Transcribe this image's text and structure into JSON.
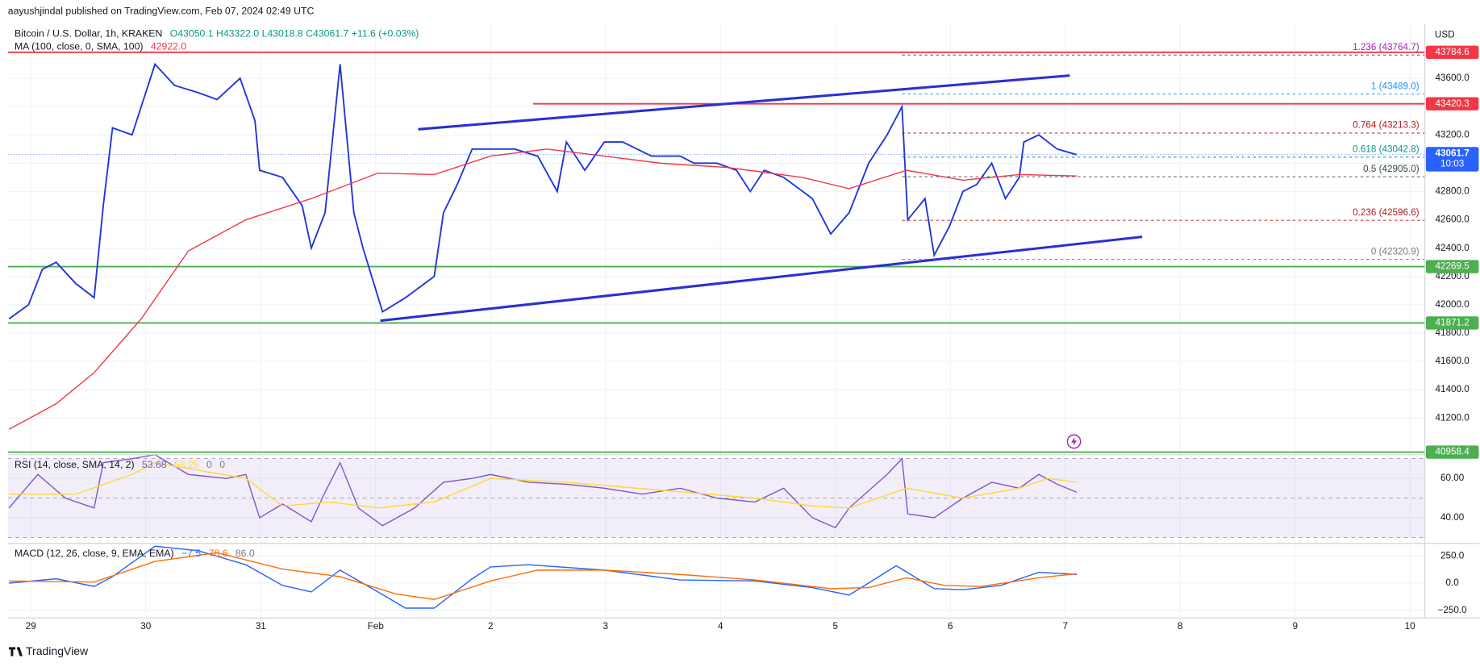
{
  "header": {
    "publisher": "aayushjindal published on TradingView.com, Feb 07, 2024 02:49 UTC",
    "ohlc": "O43050.1 H43322.0 L43018.8 C43061.7 +11.6 (+0.03%)",
    "currency": "USD",
    "footer": "TradingView"
  },
  "chart_data": [
    {
      "type": "line",
      "xlim": [
        -0.2,
        12.13
      ],
      "xticks": [
        {
          "value": 0,
          "label": "29"
        },
        {
          "value": 1,
          "label": "30"
        },
        {
          "value": 2,
          "label": "31"
        },
        {
          "value": 3,
          "label": "Feb"
        },
        {
          "value": 4,
          "label": "2"
        },
        {
          "value": 5,
          "label": "3"
        },
        {
          "value": 6,
          "label": "4"
        },
        {
          "value": 7,
          "label": "5"
        },
        {
          "value": 8,
          "label": "6"
        },
        {
          "value": 9,
          "label": "7"
        },
        {
          "value": 10,
          "label": "8"
        },
        {
          "value": 11,
          "label": "9"
        },
        {
          "value": 12,
          "label": "10"
        }
      ],
      "ylim": [
        40940,
        43987
      ],
      "yticks": [
        {
          "value": 41200,
          "label": "41200.0"
        },
        {
          "value": 41400,
          "label": "41400.0"
        },
        {
          "value": 41600,
          "label": "41600.0"
        },
        {
          "value": 41800,
          "label": "41800.0"
        },
        {
          "value": 42000,
          "label": "42000.0"
        },
        {
          "value": 42200,
          "label": "42200.0"
        },
        {
          "value": 42400,
          "label": "42400.0"
        },
        {
          "value": 42600,
          "label": "42600.0"
        },
        {
          "value": 42800,
          "label": "42800.0"
        },
        {
          "value": 43000,
          "label": "43000.0"
        },
        {
          "value": 43200,
          "label": "43200.0"
        },
        {
          "value": 43400,
          "label": "43400.0"
        },
        {
          "value": 43600,
          "label": "43600.0"
        }
      ],
      "grid": true,
      "series": [
        {
          "name": "Bitcoin / U.S. Dollar, 1h, KRAKEN",
          "color": "#1f35d9",
          "x": [
            -0.19,
            -0.02,
            0.1,
            0.22,
            0.39,
            0.55,
            0.63,
            0.71,
            0.88,
            1.08,
            1.25,
            1.45,
            1.62,
            1.82,
            1.95,
            1.99,
            2.19,
            2.36,
            2.44,
            2.56,
            2.69,
            2.81,
            2.89,
            3.06,
            3.26,
            3.51,
            3.59,
            3.71,
            3.84,
            4.0,
            4.21,
            4.41,
            4.58,
            4.66,
            4.82,
            4.99,
            5.15,
            5.4,
            5.65,
            5.77,
            5.97,
            6.14,
            6.26,
            6.38,
            6.55,
            6.8,
            6.96,
            7.12,
            7.29,
            7.45,
            7.58,
            7.63,
            7.78,
            7.86,
            7.99,
            8.11,
            8.23,
            8.36,
            8.48,
            8.6,
            8.64,
            8.77,
            8.93,
            9.1
          ],
          "values": [
            41900,
            42000,
            42250,
            42300,
            42150,
            42050,
            42700,
            43250,
            43200,
            43700,
            43550,
            43500,
            43450,
            43600,
            43300,
            42950,
            42900,
            42700,
            42400,
            42650,
            43700,
            42650,
            42400,
            41950,
            42050,
            42200,
            42650,
            42850,
            43100,
            43100,
            43100,
            43050,
            42800,
            43150,
            42950,
            43150,
            43150,
            43050,
            43050,
            43000,
            43000,
            42950,
            42800,
            42950,
            42900,
            42750,
            42500,
            42650,
            43000,
            43200,
            43400,
            42600,
            42750,
            42350,
            42550,
            42800,
            42850,
            43000,
            42750,
            42900,
            43150,
            43200,
            43100,
            43060
          ]
        },
        {
          "name": "MA (100, close, 0, SMA, 100)",
          "legend_value": "42922.0",
          "color": "#f23645",
          "x": [
            -0.19,
            0.22,
            0.55,
            0.96,
            1.37,
            1.87,
            2.44,
            3.02,
            3.51,
            4.0,
            4.49,
            4.99,
            5.48,
            6.06,
            6.71,
            7.12,
            7.62,
            8.11,
            8.6,
            9.1
          ],
          "values": [
            41120,
            41300,
            41520,
            41900,
            42380,
            42600,
            42750,
            42930,
            42920,
            43050,
            43100,
            43050,
            43000,
            42970,
            42900,
            42820,
            42950,
            42880,
            42920,
            42910
          ]
        }
      ],
      "trendlines": [
        {
          "color": "#2a2fd4",
          "x": [
            3.37,
            9.04
          ],
          "values": [
            43240,
            43620
          ]
        },
        {
          "color": "#2a2fd4",
          "x": [
            3.04,
            9.67
          ],
          "values": [
            41887,
            42480
          ]
        }
      ],
      "levels": [
        {
          "value": 43784.6,
          "color": "#f23645",
          "from": -0.2
        },
        {
          "value": 43420.3,
          "color": "#f23645",
          "from": 4.37
        },
        {
          "value": 42269.5,
          "color": "#4caf50",
          "from": -0.2
        },
        {
          "value": 41871.2,
          "color": "#4caf50",
          "from": -0.2
        },
        {
          "value": 40958.4,
          "color": "#4caf50",
          "from": -0.2
        }
      ],
      "last_price": {
        "value": 43061.7,
        "countdown": "10:03",
        "color": "#2962ff"
      },
      "fib_from": 7.58,
      "fib_levels": [
        {
          "value": 43764.7,
          "label": "1.236 (43764.7)",
          "color": "#9c27b0"
        },
        {
          "value": 43489.0,
          "label": "1 (43489.0)",
          "color": "#2196f3"
        },
        {
          "value": 43213.3,
          "label": "0.764 (43213.3)",
          "color": "#b71c1c"
        },
        {
          "value": 43042.8,
          "label": "0.618 (43042.8)",
          "color": "#089981"
        },
        {
          "value": 42905.0,
          "label": "0.5 (42905.0)",
          "color": "#37474f"
        },
        {
          "value": 42596.6,
          "label": "0.236 (42596.6)",
          "color": "#b71c1c"
        },
        {
          "value": 42320.9,
          "label": "0 (42320.9)",
          "color": "#787b86"
        }
      ]
    },
    {
      "type": "line",
      "title": "RSI (14, close, SMA, 14, 2)",
      "legend_values": [
        "53.68",
        "58.25",
        "0",
        "0"
      ],
      "ylim": [
        27,
        72
      ],
      "yticks": [
        {
          "value": 60,
          "label": "60.00"
        },
        {
          "value": 40,
          "label": "40.00"
        }
      ],
      "bands": [
        70,
        50,
        30
      ],
      "series": [
        {
          "color": "#7e57c2",
          "x": [
            -0.19,
            0.06,
            0.3,
            0.55,
            0.63,
            0.88,
            1.08,
            1.37,
            1.7,
            1.87,
            1.99,
            2.19,
            2.44,
            2.56,
            2.69,
            2.85,
            3.06,
            3.34,
            3.59,
            3.84,
            4.0,
            4.33,
            4.66,
            4.99,
            5.32,
            5.65,
            5.97,
            6.3,
            6.55,
            6.8,
            7.0,
            7.12,
            7.45,
            7.58,
            7.63,
            7.86,
            8.11,
            8.36,
            8.6,
            8.77,
            8.93,
            9.1
          ],
          "values": [
            45,
            62,
            50,
            45,
            68,
            70,
            72,
            62,
            60,
            62,
            40,
            47,
            38,
            53,
            68,
            45,
            36,
            45,
            58,
            60,
            62,
            58,
            57,
            55,
            52,
            55,
            50,
            48,
            55,
            40,
            35,
            45,
            62,
            70,
            42,
            40,
            50,
            58,
            55,
            62,
            57,
            53
          ]
        },
        {
          "color": "#fdd835",
          "x": [
            -0.19,
            0.39,
            0.88,
            1.08,
            1.37,
            1.87,
            2.19,
            2.6,
            3.02,
            3.51,
            4.0,
            4.66,
            5.48,
            6.3,
            6.8,
            7.12,
            7.62,
            8.11,
            8.6,
            8.85,
            9.1
          ],
          "values": [
            52,
            52,
            62,
            68,
            65,
            60,
            46,
            48,
            45,
            48,
            60,
            58,
            54,
            50,
            46,
            45,
            55,
            50,
            55,
            60,
            58
          ]
        }
      ]
    },
    {
      "type": "line",
      "title": "MACD (12, 26, close, 9, EMA, EMA)",
      "legend_values": [
        "−7.5",
        "78.6",
        "86.0"
      ],
      "ylim": [
        -320,
        366
      ],
      "yticks": [
        {
          "value": 250,
          "label": "250.0"
        },
        {
          "value": 0,
          "label": "0.0"
        },
        {
          "value": -250,
          "label": "−250.0"
        }
      ],
      "series": [
        {
          "color": "#2962ff",
          "x": [
            -0.19,
            0.22,
            0.55,
            0.71,
            1.08,
            1.45,
            1.87,
            2.19,
            2.44,
            2.69,
            3.02,
            3.26,
            3.51,
            3.84,
            4.0,
            4.33,
            4.99,
            5.65,
            6.3,
            6.8,
            7.12,
            7.53,
            7.86,
            8.11,
            8.44,
            8.77,
            9.1
          ],
          "values": [
            0,
            40,
            -30,
            60,
            340,
            300,
            170,
            -20,
            -80,
            120,
            -80,
            -230,
            -230,
            40,
            150,
            170,
            120,
            30,
            20,
            -40,
            -110,
            160,
            -50,
            -60,
            -20,
            100,
            80
          ]
        },
        {
          "color": "#ff6d00",
          "x": [
            -0.19,
            0.55,
            1.08,
            1.62,
            2.19,
            2.69,
            3.18,
            3.51,
            4.0,
            4.41,
            4.99,
            5.65,
            6.3,
            6.96,
            7.29,
            7.62,
            7.95,
            8.27,
            8.77,
            9.1
          ],
          "values": [
            20,
            10,
            200,
            280,
            130,
            60,
            -100,
            -150,
            20,
            120,
            120,
            80,
            30,
            -50,
            -40,
            50,
            -20,
            -30,
            50,
            86
          ]
        }
      ]
    }
  ]
}
